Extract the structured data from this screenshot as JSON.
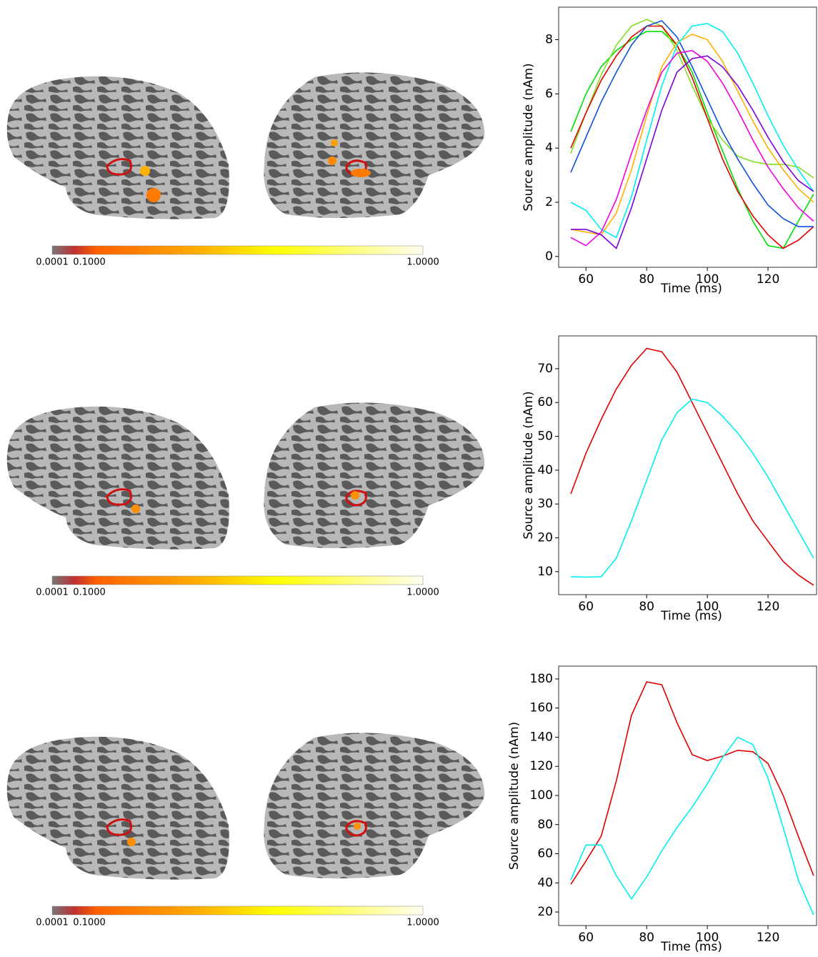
{
  "chart_data": [
    {
      "type": "line",
      "xlabel": "Time (ms)",
      "ylabel": "Source amplitude (nAm)",
      "x": [
        55,
        60,
        65,
        70,
        75,
        80,
        85,
        90,
        95,
        100,
        105,
        110,
        115,
        120,
        125,
        130,
        135
      ],
      "xlim": [
        51,
        136
      ],
      "xticks": [
        60,
        80,
        100,
        120
      ],
      "ylim": [
        -0.4,
        9.2
      ],
      "yticks": [
        0,
        2,
        4,
        6,
        8
      ],
      "series": [
        {
          "color": "#00e000",
          "values": [
            4.6,
            6.0,
            7.0,
            7.6,
            8.0,
            8.3,
            8.3,
            7.8,
            6.8,
            5.3,
            3.9,
            2.5,
            1.3,
            0.4,
            0.3,
            1.3,
            2.3
          ]
        },
        {
          "color": "#80e020",
          "values": [
            3.8,
            5.3,
            6.7,
            7.8,
            8.5,
            8.75,
            8.5,
            7.6,
            6.3,
            5.1,
            4.3,
            3.7,
            3.5,
            3.4,
            3.4,
            3.3,
            2.9
          ]
        },
        {
          "color": "#e00000",
          "values": [
            4.0,
            5.3,
            6.5,
            7.4,
            8.1,
            8.5,
            8.5,
            7.8,
            6.6,
            5.1,
            3.6,
            2.4,
            1.5,
            0.8,
            0.3,
            0.6,
            1.1
          ]
        },
        {
          "color": "#1050e0",
          "values": [
            3.1,
            4.4,
            5.7,
            6.8,
            7.8,
            8.5,
            8.7,
            8.1,
            7.0,
            5.8,
            4.6,
            3.6,
            2.7,
            1.9,
            1.4,
            1.1,
            1.1
          ]
        },
        {
          "color": "#ffb000",
          "values": [
            1.0,
            0.9,
            0.8,
            1.6,
            3.2,
            5.2,
            7.0,
            7.9,
            8.2,
            8.0,
            7.2,
            6.1,
            5.0,
            4.0,
            3.2,
            2.5,
            2.0
          ]
        },
        {
          "color": "#00f0f0",
          "values": [
            2.0,
            1.7,
            1.0,
            0.7,
            2.2,
            4.3,
            6.3,
            7.8,
            8.5,
            8.6,
            8.3,
            7.5,
            6.4,
            5.2,
            4.1,
            3.2,
            2.4
          ]
        },
        {
          "color": "#f000e0",
          "values": [
            0.7,
            0.4,
            0.9,
            2.1,
            3.8,
            5.4,
            6.8,
            7.5,
            7.6,
            7.2,
            6.4,
            5.4,
            4.3,
            3.3,
            2.5,
            1.8,
            1.3
          ]
        },
        {
          "color": "#7a00e0",
          "values": [
            1.0,
            1.0,
            0.8,
            0.3,
            1.8,
            3.6,
            5.4,
            6.8,
            7.3,
            7.4,
            7.0,
            6.3,
            5.4,
            4.4,
            3.5,
            2.8,
            2.4
          ]
        }
      ]
    },
    {
      "type": "line",
      "xlabel": "Time (ms)",
      "ylabel": "Source amplitude (nAm)",
      "x": [
        55,
        60,
        65,
        70,
        75,
        80,
        85,
        90,
        95,
        100,
        105,
        110,
        115,
        120,
        125,
        130,
        135
      ],
      "xlim": [
        51,
        136
      ],
      "xticks": [
        60,
        80,
        100,
        120
      ],
      "ylim": [
        3.2,
        79.7
      ],
      "yticks": [
        10,
        20,
        30,
        40,
        50,
        60,
        70
      ],
      "series": [
        {
          "color": "#e00000",
          "values": [
            33,
            45,
            55,
            64,
            71,
            76,
            75,
            69,
            60,
            51,
            42,
            33,
            25,
            19,
            13,
            9,
            6
          ]
        },
        {
          "color": "#00f0f0",
          "values": [
            8.5,
            8.4,
            8.5,
            14,
            25,
            37,
            49,
            57,
            61,
            60,
            56,
            51,
            45,
            38,
            30,
            22,
            14
          ]
        }
      ]
    },
    {
      "type": "line",
      "xlabel": "Time (ms)",
      "ylabel": "Source amplitude (nAm)",
      "x": [
        55,
        60,
        65,
        70,
        75,
        80,
        85,
        90,
        95,
        100,
        105,
        110,
        115,
        120,
        125,
        130,
        135
      ],
      "xlim": [
        51,
        136
      ],
      "xticks": [
        60,
        80,
        100,
        120
      ],
      "ylim": [
        10.7,
        188.8
      ],
      "yticks": [
        20,
        40,
        60,
        80,
        100,
        120,
        140,
        160,
        180
      ],
      "series": [
        {
          "color": "#e00000",
          "values": [
            39,
            55,
            72,
            110,
            155,
            178,
            176,
            150,
            128,
            124,
            127,
            131,
            130,
            122,
            100,
            72,
            45
          ]
        },
        {
          "color": "#00f0f0",
          "values": [
            42,
            66,
            66,
            45,
            29,
            44,
            62,
            78,
            92,
            108,
            126,
            140,
            135,
            112,
            78,
            42,
            18
          ]
        }
      ]
    }
  ],
  "colorbars": [
    [
      "0.0001",
      "0.1000",
      "1.0000"
    ],
    [
      "0.0001",
      "0.1000",
      "1.0000"
    ],
    [
      "0.0001",
      "0.1000",
      "1.0000"
    ]
  ]
}
